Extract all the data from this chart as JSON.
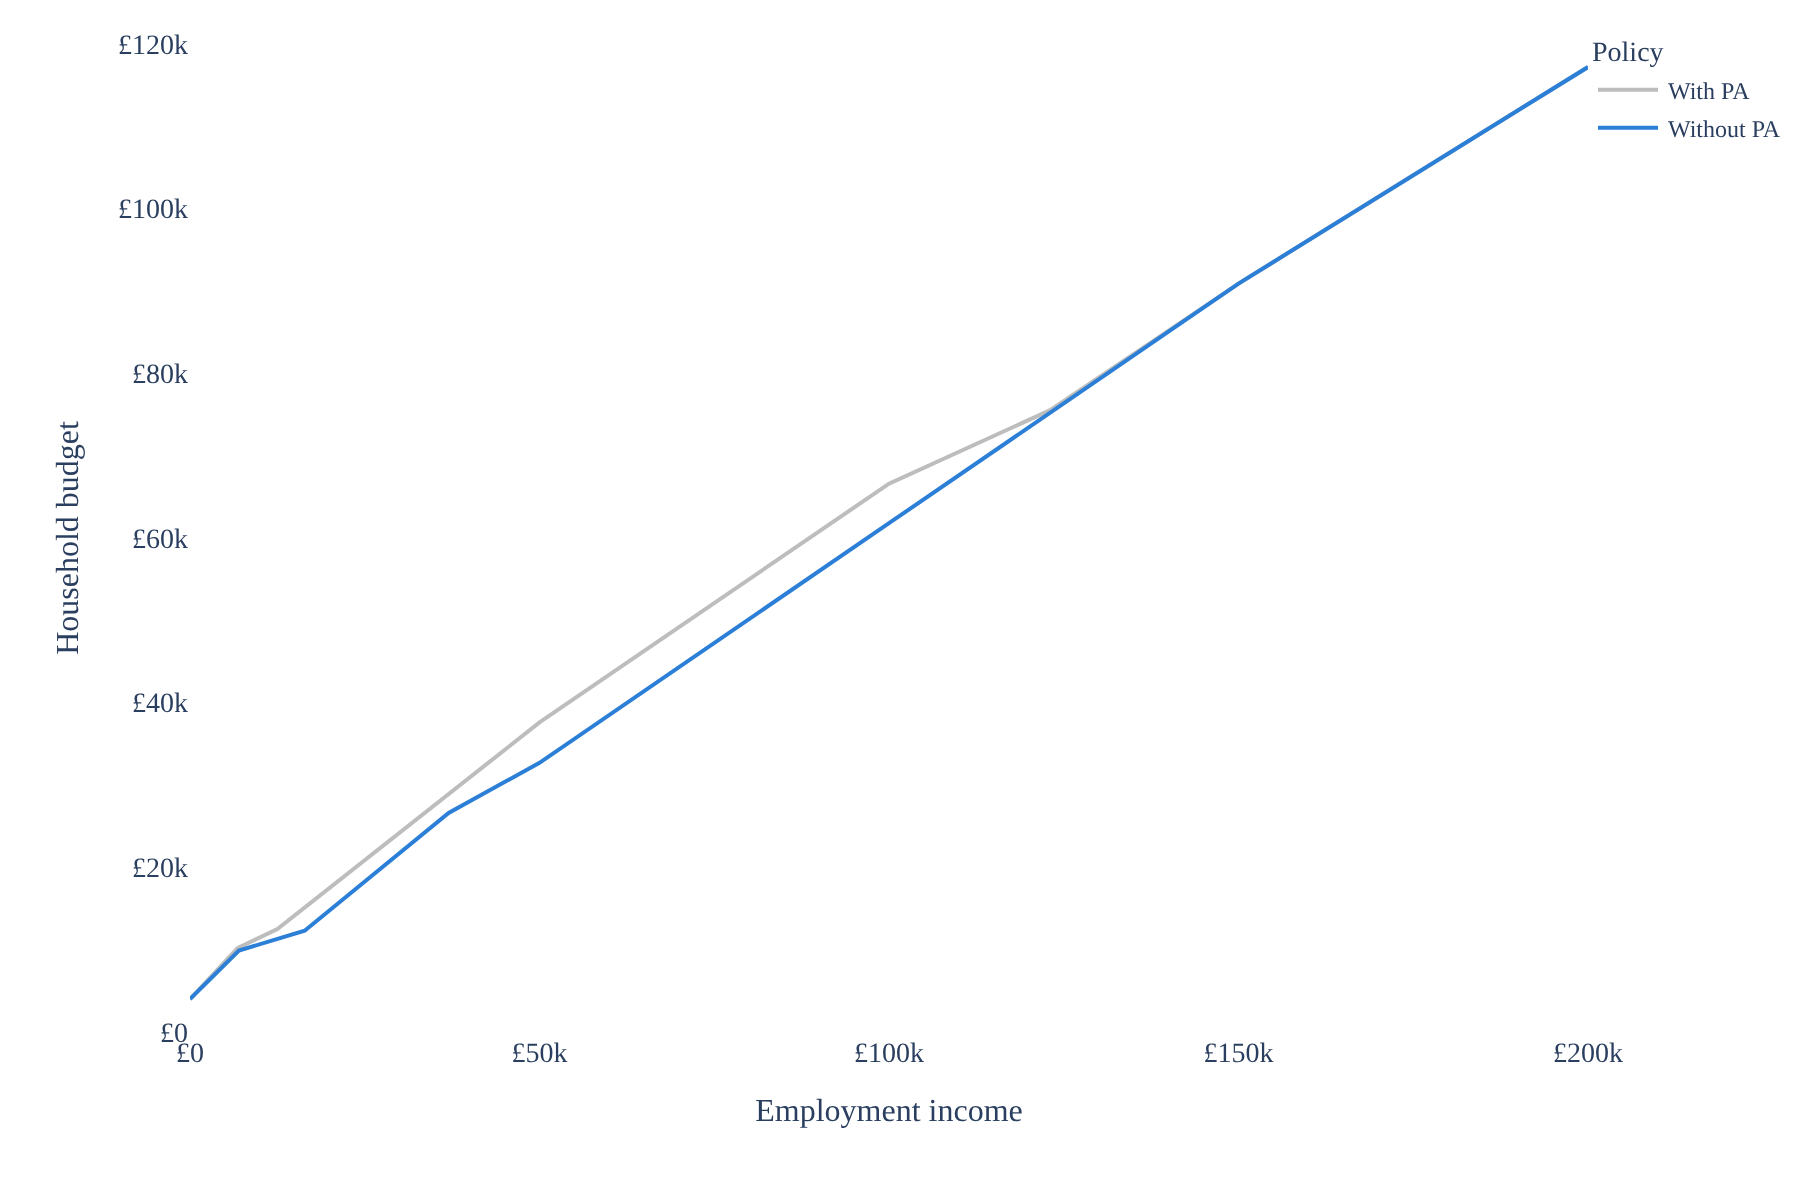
{
  "chart_data": {
    "type": "line",
    "xlabel": "Employment income",
    "ylabel": "Household budget",
    "legend_title": "Policy",
    "legend": "top right",
    "grid": false,
    "xlim": [
      0,
      200000
    ],
    "ylim": [
      0,
      120000
    ],
    "xticks": [
      {
        "value": 0,
        "label": "£0"
      },
      {
        "value": 50000,
        "label": "£50k"
      },
      {
        "value": 100000,
        "label": "£100k"
      },
      {
        "value": 150000,
        "label": "£150k"
      },
      {
        "value": 200000,
        "label": "£200k"
      }
    ],
    "yticks": [
      {
        "value": 0,
        "label": "£0"
      },
      {
        "value": 20000,
        "label": "£20k"
      },
      {
        "value": 40000,
        "label": "£40k"
      },
      {
        "value": 60000,
        "label": "£60k"
      },
      {
        "value": 80000,
        "label": "£80k"
      },
      {
        "value": 100000,
        "label": "£100k"
      },
      {
        "value": 120000,
        "label": "£120k"
      }
    ],
    "series": [
      {
        "name": "With PA",
        "color": "#bdbdbd",
        "x": [
          0,
          6800,
          12500,
          50000,
          100000,
          123000,
          150000,
          200000
        ],
        "values": [
          4000,
          10200,
          12500,
          37600,
          66600,
          75500,
          90900,
          117200
        ]
      },
      {
        "name": "Without PA",
        "color": "#2c7fd6",
        "x": [
          0,
          7000,
          16400,
          37000,
          50000,
          100000,
          150000,
          200000
        ],
        "values": [
          4000,
          9900,
          12300,
          26600,
          32700,
          61800,
          90900,
          117200
        ]
      }
    ]
  }
}
